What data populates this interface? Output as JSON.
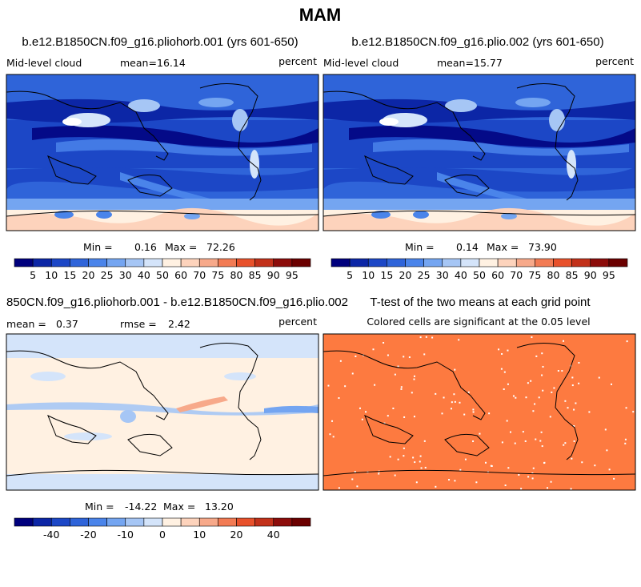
{
  "figure": {
    "title": "MAM"
  },
  "chart_data": [
    {
      "type": "heatmap",
      "title": "b.e12.B1850CN.f09_g16.pliohorb.001 (yrs 601-650)",
      "variable": "Mid-level cloud",
      "units": "percent",
      "mean_label": "mean=",
      "mean": "16.14",
      "min_label": "Min =",
      "min": "0.16",
      "max_label": "Max =",
      "max": "72.26",
      "colorbar": {
        "ticks": [
          "5",
          "10",
          "15",
          "20",
          "25",
          "30",
          "40",
          "50",
          "60",
          "70",
          "75",
          "80",
          "85",
          "90",
          "95"
        ],
        "colors": [
          "#00007d",
          "#0c26a6",
          "#1c47c6",
          "#2f64d9",
          "#4a84ea",
          "#74a5f1",
          "#a6c6f5",
          "#d4e4fa",
          "#fff1e2",
          "#fdd3bc",
          "#f7a98a",
          "#f27b54",
          "#e8512b",
          "#c2311a",
          "#8c0c0a",
          "#6b0000"
        ]
      }
    },
    {
      "type": "heatmap",
      "title": "b.e12.B1850CN.f09_g16.plio.002 (yrs 601-650)",
      "variable": "Mid-level cloud",
      "units": "percent",
      "mean_label": "mean=",
      "mean": "15.77",
      "min_label": "Min =",
      "min": "0.14",
      "max_label": "Max =",
      "max": "73.90",
      "colorbar": {
        "ticks": [
          "5",
          "10",
          "15",
          "20",
          "25",
          "30",
          "40",
          "50",
          "60",
          "70",
          "75",
          "80",
          "85",
          "90",
          "95"
        ],
        "colors": [
          "#00007d",
          "#0c26a6",
          "#1c47c6",
          "#2f64d9",
          "#4a84ea",
          "#74a5f1",
          "#a6c6f5",
          "#d4e4fa",
          "#fff1e2",
          "#fdd3bc",
          "#f7a98a",
          "#f27b54",
          "#e8512b",
          "#c2311a",
          "#8c0c0a",
          "#6b0000"
        ]
      }
    },
    {
      "type": "heatmap",
      "title": "850CN.f09_g16.pliohorb.001 - b.e12.B1850CN.f09_g16.plio.002",
      "units": "percent",
      "mean_label": "mean =",
      "mean": "0.37",
      "rmse_label": "rmse =",
      "rmse": "2.42",
      "min_label": "Min =",
      "min": "-14.22",
      "max_label": "Max =",
      "max": "13.20",
      "colorbar": {
        "ticks": [
          "-40",
          "-20",
          "-10",
          "0",
          "10",
          "20",
          "40"
        ],
        "colors": [
          "#00007d",
          "#0c26a6",
          "#1c47c6",
          "#2f64d9",
          "#4a84ea",
          "#74a5f1",
          "#a6c6f5",
          "#d4e4fa",
          "#fff1e2",
          "#fdd3bc",
          "#f7a98a",
          "#f27b54",
          "#e8512b",
          "#c2311a",
          "#8c0c0a",
          "#6b0000"
        ]
      }
    },
    {
      "type": "heatmap",
      "title": "T-test of the two means at each grid point",
      "subtitle": "Colored cells are significant at the 0.05 level",
      "fill_color": "#fd7a40"
    }
  ]
}
